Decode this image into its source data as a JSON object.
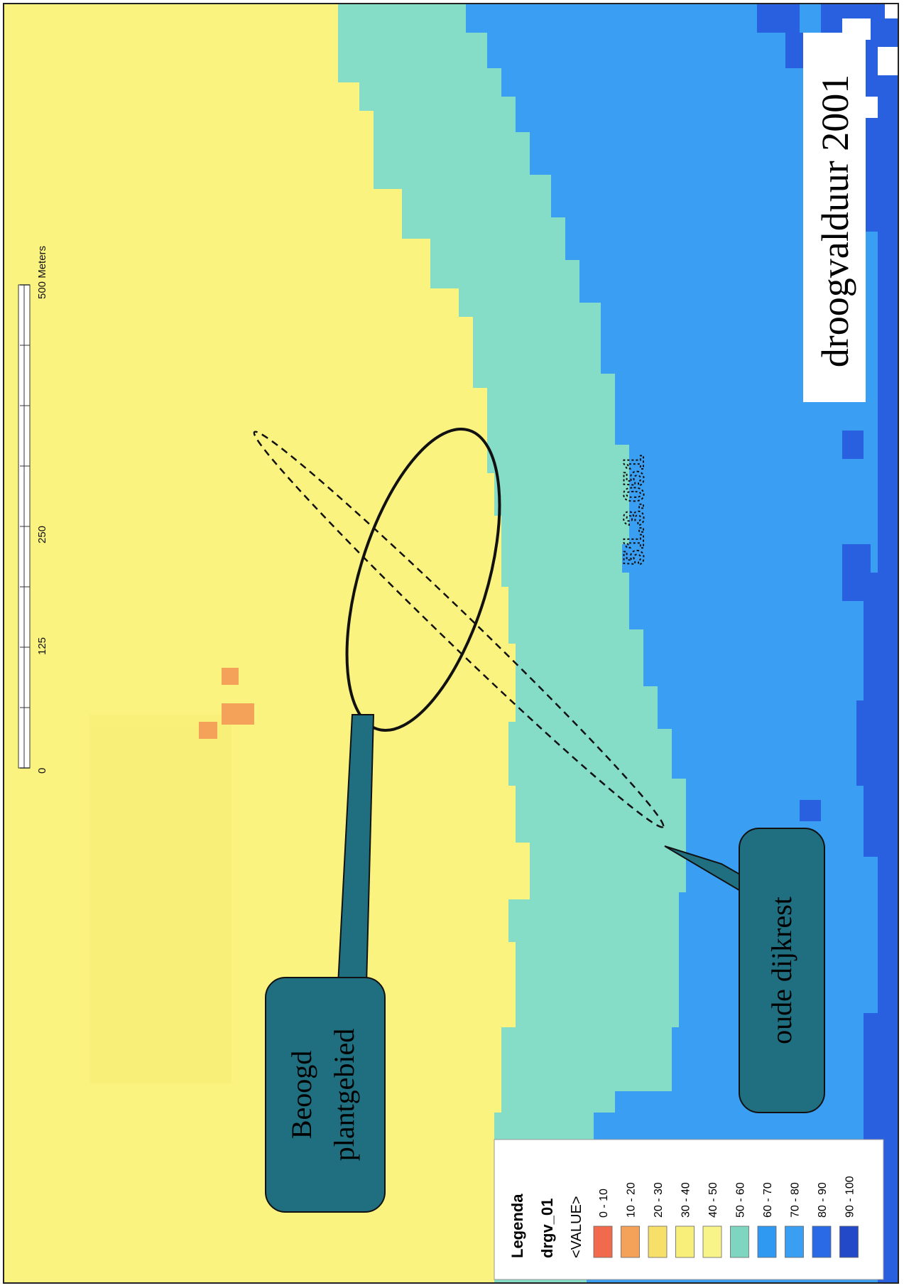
{
  "title": "droogvalduur 2001",
  "scale_bar": {
    "ticks": [
      "0",
      "125",
      "250",
      "500 Meters"
    ]
  },
  "callouts": {
    "planting_area": [
      "Beoogd",
      "plantgebied"
    ],
    "old_dike": "oude dijkrest"
  },
  "legend": {
    "heading": "Legenda",
    "layer": "drgv_01",
    "field": "<VALUE>",
    "classes": [
      {
        "label": "0 - 10",
        "color": "#f26a4d"
      },
      {
        "label": "10 - 20",
        "color": "#f4a15a"
      },
      {
        "label": "20 - 30",
        "color": "#f6e06a"
      },
      {
        "label": "30 - 40",
        "color": "#f8ef7a"
      },
      {
        "label": "40 - 50",
        "color": "#f9f48a"
      },
      {
        "label": "50 - 60",
        "color": "#7ed6c0"
      },
      {
        "label": "60 - 70",
        "color": "#2f98f0"
      },
      {
        "label": "70 - 80",
        "color": "#3a9ef2"
      },
      {
        "label": "80 - 90",
        "color": "#2a6ae6"
      },
      {
        "label": "90 - 100",
        "color": "#2449c8"
      }
    ]
  },
  "stamp_text": "51.3.051",
  "colors": {
    "land": "#fbf37f",
    "band": "#85dcc7",
    "water": "#3a9ef2",
    "deep_water": "#2960e0",
    "callout_fill": "#1f6f80",
    "callout_text": "#000000"
  }
}
